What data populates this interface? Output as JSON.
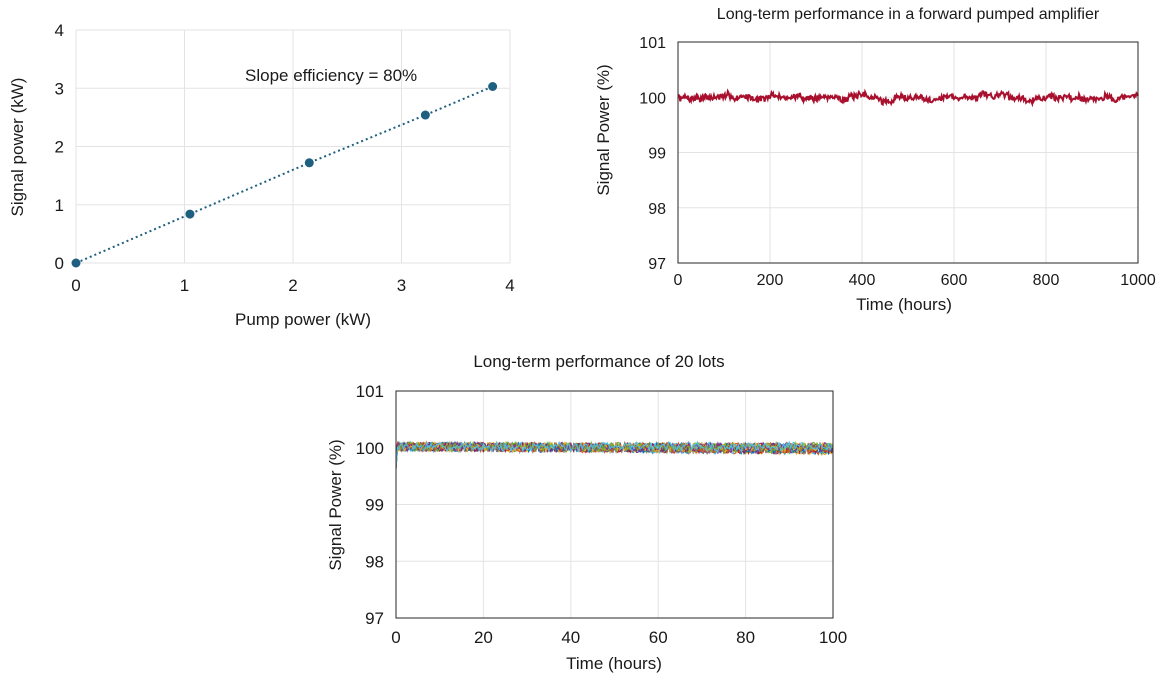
{
  "chart_data": [
    {
      "type": "scatter",
      "title": "",
      "xlabel": "Pump power (kW)",
      "ylabel": "Signal power (kW)",
      "xlim": [
        0,
        4
      ],
      "ylim": [
        0,
        4
      ],
      "xticks": [
        "0",
        "1",
        "2",
        "3",
        "4"
      ],
      "yticks": [
        "0",
        "1",
        "2",
        "3",
        "4"
      ],
      "grid": true,
      "annotation": "Slope efficiency = 80%",
      "series": [
        {
          "points": [
            [
              0,
              0
            ],
            [
              1.05,
              0.84
            ],
            [
              2.15,
              1.72
            ],
            [
              3.22,
              2.54
            ],
            [
              3.84,
              3.03
            ]
          ],
          "line_style": "dotted",
          "color": "#1f5f7f"
        }
      ]
    },
    {
      "type": "line",
      "title": "Long-term performance in a forward pumped amplifier",
      "xlabel": "Time (hours)",
      "ylabel": "Signal Power (%)",
      "xlim": [
        0,
        1000
      ],
      "ylim": [
        97,
        101
      ],
      "xticks": [
        "0",
        "200",
        "400",
        "600",
        "800",
        "1000"
      ],
      "yticks": [
        "97",
        "98",
        "99",
        "100",
        "101"
      ],
      "grid": true,
      "series": [
        {
          "mean": 100.0,
          "noise": 0.06,
          "color": "#a8102e"
        }
      ]
    },
    {
      "type": "line",
      "title": "Long-term performance of 20 lots",
      "xlabel": "Time (hours)",
      "ylabel": "Signal Power (%)",
      "xlim": [
        0,
        100
      ],
      "ylim": [
        97,
        101
      ],
      "xticks": [
        "0",
        "20",
        "40",
        "60",
        "80",
        "100"
      ],
      "yticks": [
        "97",
        "98",
        "99",
        "100",
        "101"
      ],
      "grid": true,
      "lot_count": 20,
      "series_colors": [
        "#0072bd",
        "#d95319",
        "#edb120",
        "#7e2f8e",
        "#77ac30",
        "#4dbeee",
        "#a2142f"
      ]
    }
  ]
}
